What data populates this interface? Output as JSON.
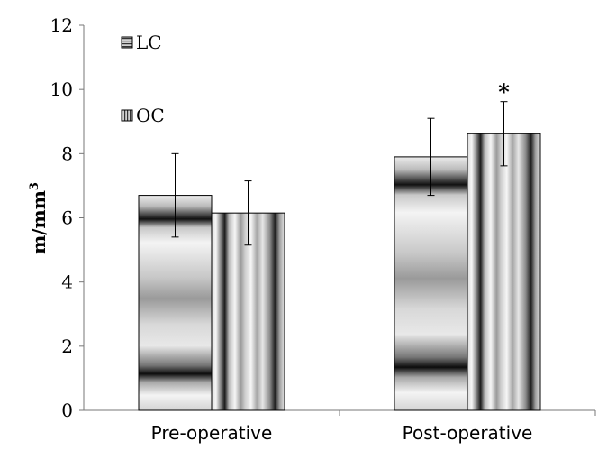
{
  "chart_data": {
    "type": "bar",
    "categories": [
      "Pre-operative",
      "Post-operative"
    ],
    "series": [
      {
        "name": "LC",
        "values": [
          6.7,
          7.9
        ],
        "errors": [
          1.3,
          1.2
        ],
        "style": "horizontal-gradient-bands"
      },
      {
        "name": "OC",
        "values": [
          6.15,
          8.62
        ],
        "errors": [
          1.0,
          1.0
        ],
        "style": "vertical-gradient-bands"
      }
    ],
    "ylabel": "m/mm",
    "ylabel_superscript": "3",
    "xlabel": "",
    "ylim": [
      0,
      12
    ],
    "yticks": [
      0,
      2,
      4,
      6,
      8,
      10,
      12
    ],
    "grid": false,
    "legend_placement": "top-left",
    "annotations": [
      {
        "text": "*",
        "category": "Post-operative",
        "series": "OC"
      }
    ]
  }
}
